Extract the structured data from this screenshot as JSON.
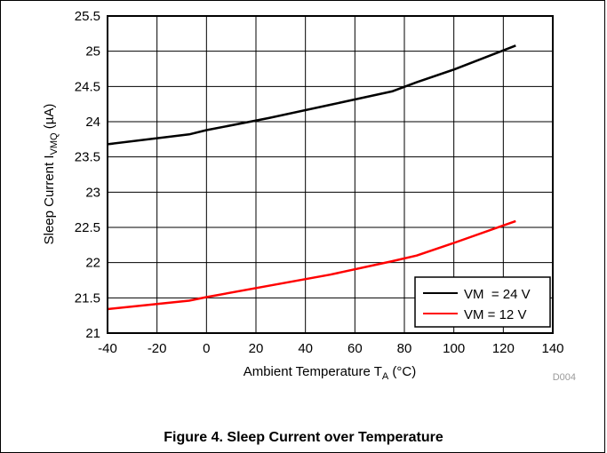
{
  "chart_data": {
    "type": "line",
    "xlabel_main": "Ambient Temperature T",
    "xlabel_sub": "A",
    "xlabel_unit": " (°C)",
    "ylabel_main": "Sleep Current I",
    "ylabel_sub": "VMQ",
    "ylabel_unit": " (µA)",
    "xlim": [
      -40,
      140
    ],
    "ylim": [
      21,
      25.5
    ],
    "x_ticks": [
      "-40",
      "-20",
      "0",
      "20",
      "40",
      "60",
      "80",
      "100",
      "120",
      "140"
    ],
    "y_ticks": [
      "21",
      "21.5",
      "22",
      "22.5",
      "23",
      "23.5",
      "24",
      "24.5",
      "25",
      "25.5"
    ],
    "grid": true,
    "legend_position": "bottom-right",
    "series": [
      {
        "name": "VM  = 24 V",
        "color": "#000000",
        "x": [
          -40,
          -7,
          0,
          25,
          50,
          75,
          85,
          100,
          125
        ],
        "y": [
          23.68,
          23.82,
          23.88,
          24.05,
          24.24,
          24.43,
          24.56,
          24.74,
          25.08
        ]
      },
      {
        "name": "VM = 12 V",
        "color": "#ff0000",
        "x": [
          -40,
          -7,
          0,
          25,
          50,
          75,
          85,
          100,
          125
        ],
        "y": [
          21.34,
          21.46,
          21.51,
          21.67,
          21.83,
          22.02,
          22.1,
          22.28,
          22.59
        ]
      }
    ]
  },
  "code": "D004",
  "caption": "Figure 4. Sleep Current over Temperature"
}
